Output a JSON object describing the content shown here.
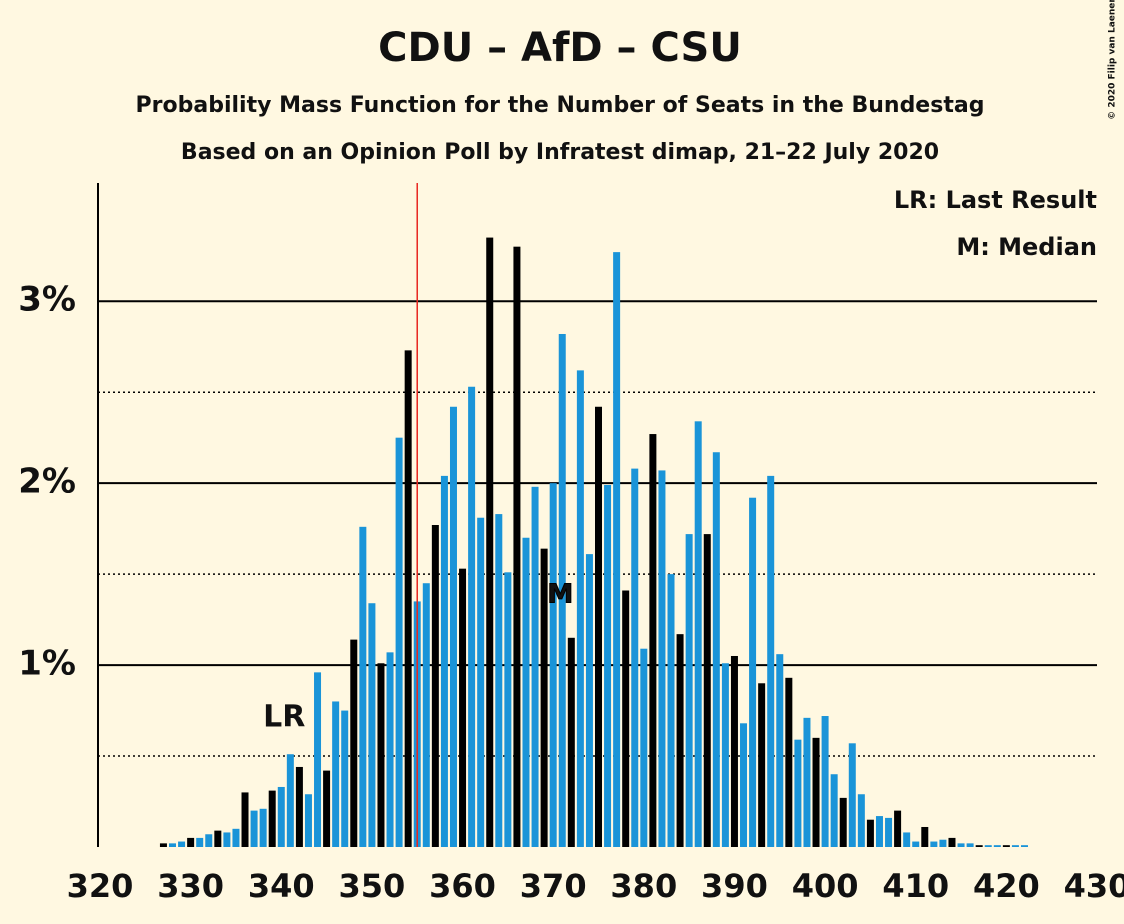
{
  "chart_data": {
    "type": "bar",
    "title": "CDU – AfD – CSU",
    "subtitle": "Probability Mass Function for the Number of Seats in the Bundestag",
    "subtitle2": "Based on an Opinion Poll by Infratest dimap, 21–22 July 2020",
    "copyright": "© 2020 Filip van Laenen",
    "x": [
      320,
      321,
      322,
      323,
      324,
      325,
      326,
      327,
      328,
      329,
      330,
      331,
      332,
      333,
      334,
      335,
      336,
      337,
      338,
      339,
      340,
      341,
      342,
      343,
      344,
      345,
      346,
      347,
      348,
      349,
      350,
      351,
      352,
      353,
      354,
      355,
      356,
      357,
      358,
      359,
      360,
      361,
      362,
      363,
      364,
      365,
      366,
      367,
      368,
      369,
      370,
      371,
      372,
      373,
      374,
      375,
      376,
      377,
      378,
      379,
      380,
      381,
      382,
      383,
      384,
      385,
      386,
      387,
      388,
      389,
      390,
      391,
      392,
      393,
      394,
      395,
      396,
      397,
      398,
      399,
      400,
      401,
      402,
      403,
      404,
      405,
      406,
      407,
      408,
      409,
      410,
      411,
      412,
      413,
      414,
      415,
      416,
      417,
      418,
      419,
      420,
      421,
      422,
      423,
      424,
      425,
      426,
      427,
      428,
      429,
      430
    ],
    "values": [
      0,
      0,
      0,
      0,
      0,
      0,
      0,
      0.02,
      0.02,
      0.03,
      0.05,
      0.05,
      0.07,
      0.09,
      0.08,
      0.1,
      0.3,
      0.2,
      0.21,
      0.31,
      0.33,
      0.51,
      0.44,
      0.29,
      0.96,
      0.42,
      0.8,
      0.75,
      1.14,
      1.76,
      1.34,
      1.01,
      1.07,
      2.25,
      2.73,
      1.35,
      1.45,
      1.77,
      2.04,
      2.42,
      1.53,
      2.53,
      1.81,
      3.35,
      1.83,
      1.51,
      3.3,
      1.7,
      1.98,
      1.64,
      2.0,
      2.82,
      1.15,
      2.62,
      1.61,
      2.42,
      1.99,
      3.27,
      1.41,
      2.08,
      1.09,
      2.27,
      2.07,
      1.5,
      1.17,
      1.72,
      2.34,
      1.72,
      2.17,
      1.01,
      1.05,
      0.68,
      1.92,
      0.9,
      2.04,
      1.06,
      0.93,
      0.59,
      0.71,
      0.6,
      0.72,
      0.4,
      0.27,
      0.57,
      0.29,
      0.15,
      0.17,
      0.16,
      0.2,
      0.08,
      0.03,
      0.11,
      0.03,
      0.04,
      0.05,
      0.02,
      0.02,
      0.01,
      0.01,
      0.01,
      0.01,
      0.01,
      0.01,
      0,
      0,
      0,
      0,
      0,
      0,
      0,
      0
    ],
    "colors": [
      "#1a94d8",
      "#000000",
      "#1a94d8"
    ],
    "xlim": [
      320,
      430
    ],
    "xticks": [
      320,
      330,
      340,
      350,
      360,
      370,
      380,
      390,
      400,
      410,
      420,
      430
    ],
    "ylim": [
      0,
      3.65
    ],
    "yticks": [
      {
        "value": 1,
        "label": "1%"
      },
      {
        "value": 2,
        "label": "2%"
      },
      {
        "value": 3,
        "label": "3%"
      }
    ],
    "minor_yticks": [
      0.5,
      1.5,
      2.5
    ],
    "majority": 355,
    "last_result": 340,
    "last_result_label": "LR",
    "median": 372,
    "median_label": "M",
    "legend": [
      "LR: Last Result",
      "M: Median"
    ]
  }
}
